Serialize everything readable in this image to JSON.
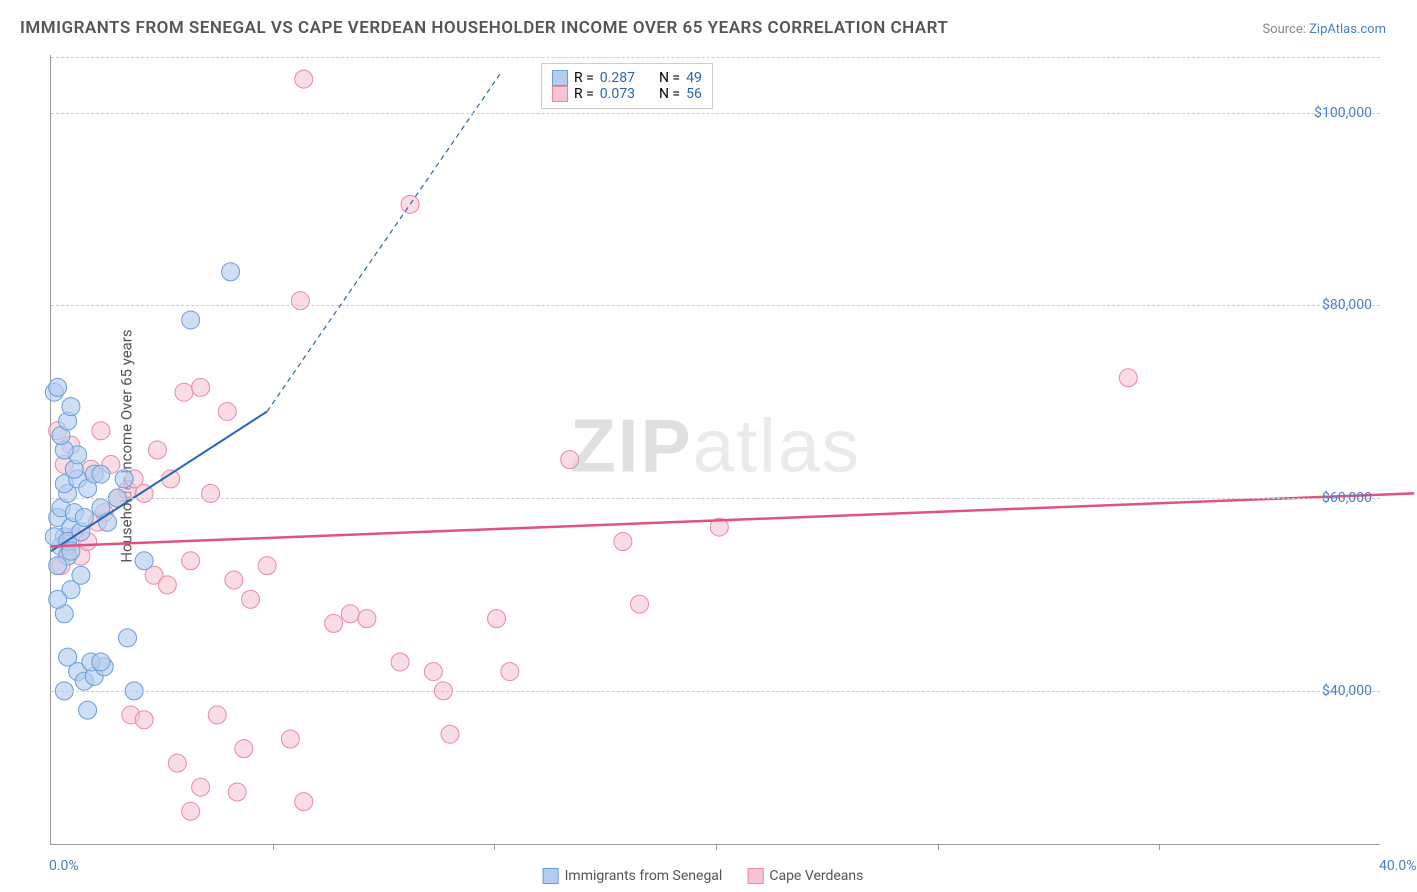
{
  "title": "IMMIGRANTS FROM SENEGAL VS CAPE VERDEAN HOUSEHOLDER INCOME OVER 65 YEARS CORRELATION CHART",
  "source_label": "Source:",
  "source_name": "ZipAtlas.com",
  "y_axis_label": "Householder Income Over 65 years",
  "watermark_a": "ZIP",
  "watermark_b": "atlas",
  "chart": {
    "type": "scatter",
    "xlim": [
      0,
      40
    ],
    "ylim": [
      24000,
      106000
    ],
    "x_ticks": [
      0,
      40
    ],
    "x_tick_labels": [
      "0.0%",
      "40.0%"
    ],
    "x_minor_ticks": [
      6.67,
      13.33,
      20,
      26.67,
      33.33
    ],
    "y_ticks": [
      40000,
      60000,
      80000,
      100000
    ],
    "y_tick_labels": [
      "$40,000",
      "$60,000",
      "$80,000",
      "$100,000"
    ],
    "grid_color": "#cccccc",
    "background_color": "#ffffff",
    "series": [
      {
        "name": "Immigrants from Senegal",
        "color_fill": "#b4cdee",
        "color_stroke": "#6a9ed8",
        "marker_radius": 9,
        "marker_opacity": 0.65,
        "trend": {
          "x1": 0,
          "y1": 54500,
          "x2": 6.5,
          "y2": 69000,
          "dash_x2": 13.5,
          "dash_y2": 104000,
          "stroke": "#2b64b5",
          "width": 2
        },
        "stats": {
          "R": "0.287",
          "N": "49"
        },
        "points": [
          [
            0.2,
            58000
          ],
          [
            0.4,
            56000
          ],
          [
            0.3,
            55000
          ],
          [
            0.5,
            54000
          ],
          [
            0.6,
            57000
          ],
          [
            0.1,
            56000
          ],
          [
            0.3,
            59000
          ],
          [
            0.5,
            60500
          ],
          [
            0.4,
            61500
          ],
          [
            0.7,
            58500
          ],
          [
            0.8,
            62000
          ],
          [
            0.2,
            53000
          ],
          [
            0.5,
            55500
          ],
          [
            0.6,
            54500
          ],
          [
            0.9,
            56500
          ],
          [
            1.0,
            58000
          ],
          [
            1.1,
            61000
          ],
          [
            0.7,
            63000
          ],
          [
            0.8,
            64500
          ],
          [
            0.4,
            65000
          ],
          [
            0.3,
            66500
          ],
          [
            0.5,
            68000
          ],
          [
            0.6,
            69500
          ],
          [
            0.1,
            71000
          ],
          [
            0.2,
            71500
          ],
          [
            1.3,
            62500
          ],
          [
            1.5,
            59000
          ],
          [
            1.7,
            57500
          ],
          [
            2.0,
            60000
          ],
          [
            2.2,
            62000
          ],
          [
            2.3,
            45500
          ],
          [
            0.5,
            43500
          ],
          [
            0.8,
            42000
          ],
          [
            1.0,
            41000
          ],
          [
            1.3,
            41500
          ],
          [
            1.6,
            42500
          ],
          [
            0.4,
            48000
          ],
          [
            0.6,
            50500
          ],
          [
            0.9,
            52000
          ],
          [
            0.2,
            49500
          ],
          [
            1.2,
            43000
          ],
          [
            1.5,
            43000
          ],
          [
            2.5,
            40000
          ],
          [
            2.8,
            53500
          ],
          [
            1.1,
            38000
          ],
          [
            0.4,
            40000
          ],
          [
            1.5,
            62500
          ],
          [
            4.2,
            78500
          ],
          [
            5.4,
            83500
          ]
        ]
      },
      {
        "name": "Cape Verdeans",
        "color_fill": "#f6c5d3",
        "color_stroke": "#e989a6",
        "marker_radius": 9,
        "marker_opacity": 0.6,
        "trend": {
          "x1": 0,
          "y1": 55000,
          "x2": 41,
          "y2": 60500,
          "stroke": "#e15182",
          "width": 2.5
        },
        "stats": {
          "R": "0.073",
          "N": "56"
        },
        "points": [
          [
            0.3,
            53000
          ],
          [
            0.5,
            55000
          ],
          [
            0.7,
            56000
          ],
          [
            0.9,
            54000
          ],
          [
            1.1,
            55500
          ],
          [
            1.4,
            57500
          ],
          [
            1.6,
            58500
          ],
          [
            2.0,
            60000
          ],
          [
            2.3,
            60800
          ],
          [
            2.5,
            62000
          ],
          [
            2.8,
            60500
          ],
          [
            1.2,
            63000
          ],
          [
            1.5,
            67000
          ],
          [
            1.8,
            63500
          ],
          [
            3.2,
            65000
          ],
          [
            3.6,
            62000
          ],
          [
            4.0,
            71000
          ],
          [
            4.5,
            71500
          ],
          [
            5.3,
            69000
          ],
          [
            4.8,
            60500
          ],
          [
            3.1,
            52000
          ],
          [
            3.5,
            51000
          ],
          [
            4.2,
            53500
          ],
          [
            5.5,
            51500
          ],
          [
            6.0,
            49500
          ],
          [
            6.5,
            53000
          ],
          [
            7.5,
            80500
          ],
          [
            7.6,
            103500
          ],
          [
            10.8,
            90500
          ],
          [
            8.5,
            47000
          ],
          [
            9.0,
            48000
          ],
          [
            9.5,
            47500
          ],
          [
            10.5,
            43000
          ],
          [
            11.5,
            42000
          ],
          [
            12.0,
            35500
          ],
          [
            11.8,
            40000
          ],
          [
            7.2,
            35000
          ],
          [
            5.0,
            37500
          ],
          [
            5.8,
            34000
          ],
          [
            4.5,
            30000
          ],
          [
            4.2,
            27500
          ],
          [
            3.8,
            32500
          ],
          [
            2.4,
            37500
          ],
          [
            2.8,
            37000
          ],
          [
            5.6,
            29500
          ],
          [
            7.6,
            28500
          ],
          [
            15.6,
            64000
          ],
          [
            17.2,
            55500
          ],
          [
            17.7,
            49000
          ],
          [
            20.1,
            57000
          ],
          [
            13.4,
            47500
          ],
          [
            13.8,
            42000
          ],
          [
            32.4,
            72500
          ],
          [
            0.2,
            67000
          ],
          [
            0.6,
            65500
          ],
          [
            0.4,
            63500
          ]
        ]
      }
    ]
  },
  "legend_box": {
    "R_label": "R =",
    "N_label": "N =",
    "value_color": "#2b64b5"
  },
  "bottom_legend": {
    "items": [
      "Immigrants from Senegal",
      "Cape Verdeans"
    ]
  }
}
